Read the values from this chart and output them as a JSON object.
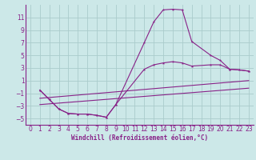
{
  "xlabel": "Windchill (Refroidissement éolien,°C)",
  "background_color": "#cce8e8",
  "grid_color": "#aacccc",
  "line_color": "#882288",
  "xlim": [
    -0.5,
    23.5
  ],
  "ylim": [
    -6,
    13
  ],
  "xticks": [
    0,
    1,
    2,
    3,
    4,
    5,
    6,
    7,
    8,
    9,
    10,
    11,
    12,
    13,
    14,
    15,
    16,
    17,
    18,
    19,
    20,
    21,
    22,
    23
  ],
  "yticks": [
    -5,
    -3,
    -1,
    1,
    3,
    5,
    7,
    9,
    11
  ],
  "line1_x": [
    1,
    2,
    3,
    4,
    5,
    6,
    7,
    8,
    9,
    12,
    13,
    14,
    15,
    16,
    17,
    19,
    20,
    21,
    22,
    23
  ],
  "line1_y": [
    -0.5,
    -2.0,
    -3.5,
    -4.2,
    -4.3,
    -4.3,
    -4.5,
    -4.8,
    -2.8,
    7.0,
    10.3,
    12.2,
    12.3,
    12.2,
    7.2,
    5.0,
    4.2,
    2.8,
    2.7,
    2.5
  ],
  "line2_x": [
    1,
    2,
    3,
    4,
    5,
    6,
    7,
    8,
    9,
    12,
    13,
    14,
    15,
    16,
    17,
    19,
    20,
    21,
    22,
    23
  ],
  "line2_y": [
    -0.5,
    -2.0,
    -3.5,
    -4.2,
    -4.3,
    -4.3,
    -4.5,
    -4.8,
    -2.8,
    2.8,
    3.5,
    3.8,
    4.0,
    3.8,
    3.3,
    3.5,
    3.5,
    2.8,
    2.7,
    2.5
  ],
  "line3_x": [
    1,
    23
  ],
  "line3_y": [
    -1.8,
    1.0
  ],
  "line4_x": [
    1,
    23
  ],
  "line4_y": [
    -2.8,
    -0.2
  ],
  "tick_fontsize": 5.5,
  "xlabel_fontsize": 5.5
}
